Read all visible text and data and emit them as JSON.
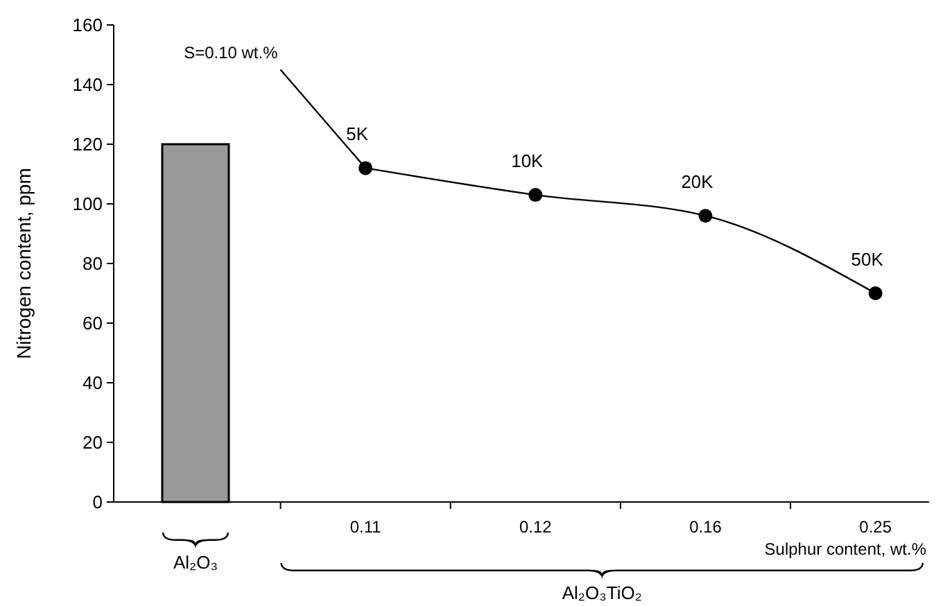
{
  "chart_data": {
    "type": "line",
    "xlabel": "Sulphur content, wt.%",
    "ylabel": "Nitrogen content, ppm",
    "categories": [
      null,
      null,
      "0.11",
      null,
      "0.12",
      null,
      "0.16",
      null,
      "0.25"
    ],
    "ylim": [
      0,
      160
    ],
    "yticks": [
      0,
      20,
      40,
      60,
      80,
      100,
      120,
      140,
      160
    ],
    "grid": false,
    "series": [
      {
        "type": "bar",
        "color": "#999999",
        "values": [
          120,
          null,
          null,
          null,
          null,
          null,
          null,
          null,
          null
        ]
      },
      {
        "color": "#000000",
        "marker": "none",
        "values": [
          null,
          145,
          112,
          null,
          null,
          null,
          null,
          null,
          null
        ]
      },
      {
        "color": "#000000",
        "marker": "circle",
        "values": [
          null,
          null,
          112,
          null,
          103,
          null,
          96,
          null,
          70
        ]
      }
    ],
    "annotations": [
      "S=0.10 wt.%",
      {
        "text": "5K",
        "x": "0.11",
        "y": 112
      },
      {
        "text": "10K",
        "x": "0.12",
        "y": 103
      },
      {
        "text": "20K",
        "x": "0.16",
        "y": 96
      },
      {
        "text": "50K",
        "x": "0.25",
        "y": 70
      },
      "Al₂O₃",
      "Al₂O₃TiO₂"
    ]
  }
}
